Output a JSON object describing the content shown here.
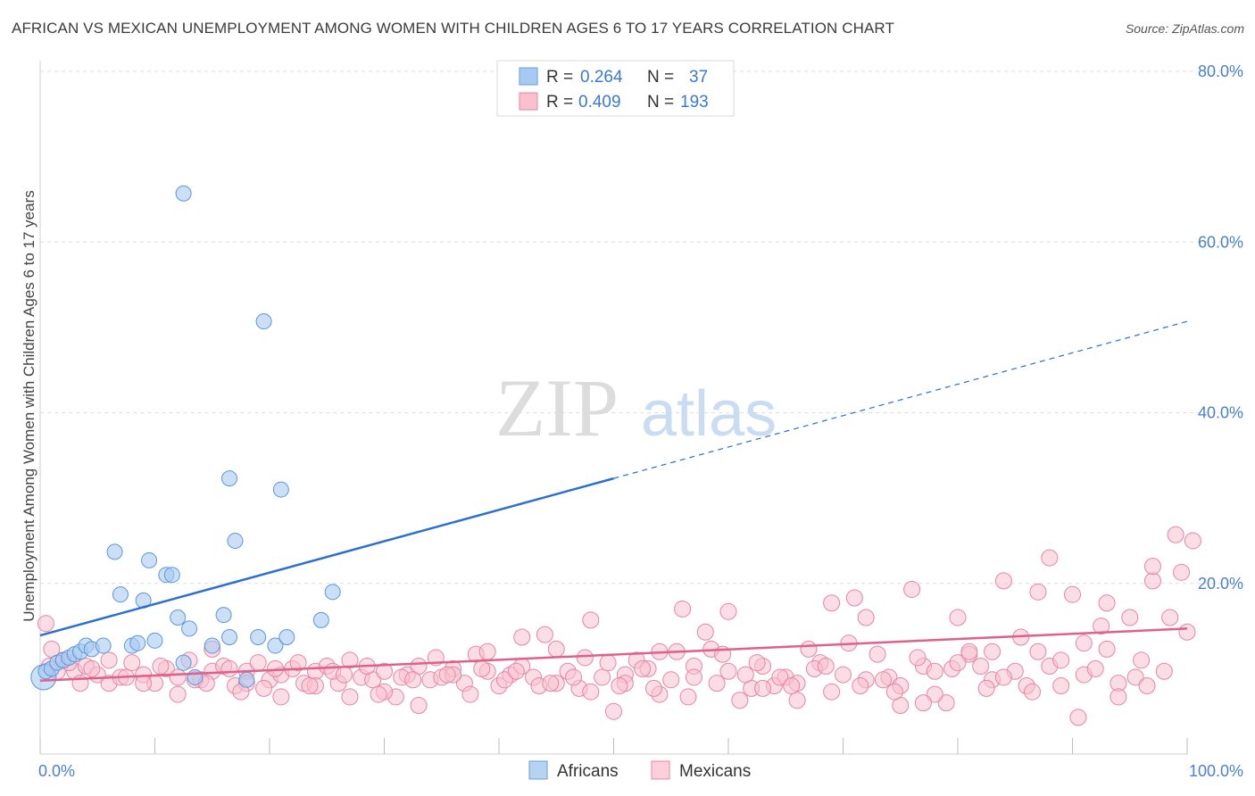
{
  "title": "AFRICAN VS MEXICAN UNEMPLOYMENT AMONG WOMEN WITH CHILDREN AGES 6 TO 17 YEARS CORRELATION CHART",
  "source": "Source: ZipAtlas.com",
  "watermark": {
    "zip": "ZIP",
    "atlas": "atlas"
  },
  "legend_top": [
    {
      "r_label": "R =",
      "r_value": "0.264",
      "n_label": "N =",
      "n_value": "37",
      "color": "#a9c9f0",
      "border": "#6a9fd8"
    },
    {
      "r_label": "R =",
      "r_value": "0.409",
      "n_label": "N =",
      "n_value": "193",
      "color": "#f7c1d0",
      "border": "#e884a5"
    }
  ],
  "legend_bottom": [
    {
      "label": "Africans",
      "color": "#b7d3f2",
      "border": "#6a9fd8"
    },
    {
      "label": "Mexicans",
      "color": "#fbd0dc",
      "border": "#e884a5"
    }
  ],
  "chart_data": {
    "type": "scatter",
    "title": "AFRICAN VS MEXICAN UNEMPLOYMENT AMONG WOMEN WITH CHILDREN AGES 6 TO 17 YEARS CORRELATION CHART",
    "xlabel": "",
    "ylabel": "Unemployment Among Women with Children Ages 6 to 17 years",
    "xlim": [
      0,
      100
    ],
    "ylim": [
      0,
      80
    ],
    "x_tick_labels": [
      "0.0%",
      "100.0%"
    ],
    "y_ticks": [
      20,
      40,
      60,
      80
    ],
    "y_tick_labels": [
      "20.0%",
      "40.0%",
      "60.0%",
      "80.0%"
    ],
    "grid": true,
    "colors": {
      "africans_fill": "#a9c9f0",
      "africans_stroke": "#5c97da",
      "africans_line": "#2a6fd1",
      "mexicans_fill": "#f7c1d0",
      "mexicans_stroke": "#e884a5",
      "mexicans_line": "#e0608c",
      "axis_text": "#4a7fd0"
    },
    "series": [
      {
        "name": "Africans",
        "R": 0.264,
        "N": 37,
        "trend": {
          "x0": 0,
          "y0": 13.9,
          "x1": 50,
          "y1": 32.3,
          "dashed_to_x": 100,
          "dashed_to_y": 50.7
        },
        "points": [
          [
            0.5,
            9.7
          ],
          [
            1.0,
            10.0
          ],
          [
            1.5,
            10.7
          ],
          [
            2.0,
            11.0
          ],
          [
            2.5,
            11.3
          ],
          [
            3.0,
            11.7
          ],
          [
            3.5,
            12.0
          ],
          [
            4.0,
            12.7
          ],
          [
            4.5,
            12.3
          ],
          [
            5.5,
            12.7
          ],
          [
            6.5,
            23.7
          ],
          [
            7.0,
            18.7
          ],
          [
            8.0,
            12.7
          ],
          [
            8.5,
            13.0
          ],
          [
            9.0,
            18.0
          ],
          [
            9.5,
            22.7
          ],
          [
            10.0,
            13.3
          ],
          [
            11.0,
            21.0
          ],
          [
            11.5,
            21.0
          ],
          [
            12.0,
            16.0
          ],
          [
            12.5,
            10.7
          ],
          [
            13.5,
            9.0
          ],
          [
            13.0,
            14.7
          ],
          [
            15.0,
            12.7
          ],
          [
            16.0,
            16.3
          ],
          [
            16.5,
            13.7
          ],
          [
            17.0,
            25.0
          ],
          [
            16.5,
            32.3
          ],
          [
            18.0,
            8.7
          ],
          [
            19.0,
            13.7
          ],
          [
            20.5,
            12.7
          ],
          [
            21.5,
            13.7
          ],
          [
            12.5,
            65.7
          ],
          [
            19.5,
            50.7
          ],
          [
            21.0,
            31.0
          ],
          [
            24.5,
            15.7
          ],
          [
            25.5,
            19.0
          ]
        ]
      },
      {
        "name": "Mexicans",
        "R": 0.409,
        "N": 193,
        "trend": {
          "x0": 0,
          "y0": 8.6,
          "x1": 100,
          "y1": 14.7
        },
        "points": [
          [
            0.5,
            15.3
          ],
          [
            1.0,
            12.3
          ],
          [
            2.0,
            11.0
          ],
          [
            3.0,
            9.7
          ],
          [
            4.0,
            10.3
          ],
          [
            5.0,
            9.3
          ],
          [
            6.0,
            8.3
          ],
          [
            7.0,
            9.0
          ],
          [
            8.0,
            10.7
          ],
          [
            9.0,
            9.3
          ],
          [
            10.0,
            8.3
          ],
          [
            11.0,
            10.0
          ],
          [
            12.0,
            9.0
          ],
          [
            13.0,
            11.0
          ],
          [
            14.0,
            8.7
          ],
          [
            15.0,
            9.7
          ],
          [
            16.0,
            10.3
          ],
          [
            17.0,
            8.0
          ],
          [
            18.0,
            9.7
          ],
          [
            19.0,
            10.7
          ],
          [
            20.0,
            8.7
          ],
          [
            21.0,
            9.3
          ],
          [
            22.0,
            10.0
          ],
          [
            23.0,
            8.3
          ],
          [
            24.0,
            9.7
          ],
          [
            25.0,
            10.3
          ],
          [
            26.0,
            8.3
          ],
          [
            27.0,
            11.0
          ],
          [
            28.0,
            9.0
          ],
          [
            29.0,
            8.7
          ],
          [
            30.0,
            9.7
          ],
          [
            31.0,
            6.7
          ],
          [
            32.0,
            9.3
          ],
          [
            33.0,
            10.3
          ],
          [
            34.0,
            8.7
          ],
          [
            35.0,
            9.0
          ],
          [
            36.0,
            10.0
          ],
          [
            37.0,
            8.3
          ],
          [
            38.0,
            11.7
          ],
          [
            39.0,
            9.7
          ],
          [
            40.0,
            8.0
          ],
          [
            41.0,
            9.3
          ],
          [
            42.0,
            10.3
          ],
          [
            43.0,
            9.0
          ],
          [
            44.0,
            14.0
          ],
          [
            45.0,
            8.3
          ],
          [
            46.0,
            9.7
          ],
          [
            47.0,
            7.7
          ],
          [
            48.0,
            15.7
          ],
          [
            49.0,
            9.0
          ],
          [
            50.0,
            5.0
          ],
          [
            51.0,
            9.3
          ],
          [
            52.0,
            11.0
          ],
          [
            53.0,
            10.0
          ],
          [
            54.0,
            12.0
          ],
          [
            55.0,
            8.7
          ],
          [
            56.0,
            17.0
          ],
          [
            57.0,
            10.3
          ],
          [
            58.0,
            14.3
          ],
          [
            59.0,
            8.3
          ],
          [
            60.0,
            9.7
          ],
          [
            61.0,
            6.3
          ],
          [
            62.0,
            7.7
          ],
          [
            63.0,
            10.3
          ],
          [
            64.0,
            8.0
          ],
          [
            65.0,
            9.0
          ],
          [
            66.0,
            8.3
          ],
          [
            67.0,
            12.3
          ],
          [
            68.0,
            10.7
          ],
          [
            69.0,
            17.7
          ],
          [
            70.0,
            9.3
          ],
          [
            71.0,
            18.3
          ],
          [
            72.0,
            8.7
          ],
          [
            73.0,
            11.7
          ],
          [
            74.0,
            9.0
          ],
          [
            75.0,
            8.0
          ],
          [
            76.0,
            19.3
          ],
          [
            77.0,
            10.3
          ],
          [
            78.0,
            9.7
          ],
          [
            79.0,
            6.0
          ],
          [
            80.0,
            16.0
          ],
          [
            81.0,
            11.7
          ],
          [
            82.0,
            10.3
          ],
          [
            83.0,
            8.7
          ],
          [
            84.0,
            20.3
          ],
          [
            85.0,
            9.7
          ],
          [
            86.0,
            8.0
          ],
          [
            87.0,
            12.0
          ],
          [
            88.0,
            10.3
          ],
          [
            89.0,
            11.0
          ],
          [
            90.0,
            18.7
          ],
          [
            91.0,
            9.3
          ],
          [
            92.0,
            10.0
          ],
          [
            93.0,
            12.3
          ],
          [
            94.0,
            8.3
          ],
          [
            95.0,
            16.0
          ],
          [
            96.0,
            11.0
          ],
          [
            97.0,
            20.3
          ],
          [
            98.0,
            9.7
          ],
          [
            99.0,
            25.7
          ],
          [
            100.0,
            14.3
          ],
          [
            88.0,
            23.0
          ],
          [
            90.5,
            4.3
          ],
          [
            92.5,
            15.0
          ],
          [
            94.0,
            6.7
          ],
          [
            95.5,
            9.0
          ],
          [
            97.0,
            22.0
          ],
          [
            98.5,
            16.0
          ],
          [
            99.5,
            21.3
          ],
          [
            93.0,
            17.7
          ],
          [
            91.0,
            13.0
          ],
          [
            87.0,
            19.0
          ],
          [
            85.5,
            13.7
          ],
          [
            84.0,
            9.0
          ],
          [
            82.5,
            7.7
          ],
          [
            81.0,
            12.0
          ],
          [
            79.5,
            10.0
          ],
          [
            78.0,
            7.0
          ],
          [
            76.5,
            11.3
          ],
          [
            75.0,
            5.7
          ],
          [
            73.5,
            8.7
          ],
          [
            72.0,
            16.0
          ],
          [
            70.5,
            13.0
          ],
          [
            69.0,
            7.3
          ],
          [
            67.5,
            10.0
          ],
          [
            66.0,
            6.3
          ],
          [
            64.5,
            9.0
          ],
          [
            63.0,
            7.7
          ],
          [
            61.5,
            9.3
          ],
          [
            60.0,
            16.7
          ],
          [
            58.5,
            12.3
          ],
          [
            57.0,
            9.0
          ],
          [
            55.5,
            12.0
          ],
          [
            54.0,
            7.0
          ],
          [
            52.5,
            10.0
          ],
          [
            51.0,
            8.3
          ],
          [
            49.5,
            10.7
          ],
          [
            48.0,
            7.3
          ],
          [
            46.5,
            9.0
          ],
          [
            45.0,
            12.3
          ],
          [
            43.5,
            8.0
          ],
          [
            42.0,
            13.7
          ],
          [
            40.5,
            8.7
          ],
          [
            39.0,
            12.0
          ],
          [
            37.5,
            7.0
          ],
          [
            36.0,
            9.3
          ],
          [
            34.5,
            11.3
          ],
          [
            33.0,
            5.7
          ],
          [
            31.5,
            9.0
          ],
          [
            30.0,
            7.3
          ],
          [
            28.5,
            10.3
          ],
          [
            27.0,
            6.7
          ],
          [
            25.5,
            9.7
          ],
          [
            24.0,
            8.0
          ],
          [
            22.5,
            10.7
          ],
          [
            21.0,
            6.7
          ],
          [
            19.5,
            7.7
          ],
          [
            18.0,
            8.3
          ],
          [
            16.5,
            10.0
          ],
          [
            15.0,
            12.3
          ],
          [
            13.5,
            8.7
          ],
          [
            12.0,
            7.0
          ],
          [
            10.5,
            10.3
          ],
          [
            9.0,
            8.3
          ],
          [
            7.5,
            9.0
          ],
          [
            6.0,
            11.0
          ],
          [
            4.5,
            10.0
          ],
          [
            3.5,
            8.3
          ],
          [
            2.5,
            10.7
          ],
          [
            1.5,
            9.7
          ],
          [
            0.8,
            10.3
          ],
          [
            100.5,
            25.0
          ],
          [
            96.5,
            8.0
          ],
          [
            89.0,
            8.0
          ],
          [
            86.5,
            7.3
          ],
          [
            83.0,
            12.0
          ],
          [
            80.0,
            10.7
          ],
          [
            77.0,
            6.0
          ],
          [
            74.5,
            7.3
          ],
          [
            71.5,
            8.0
          ],
          [
            68.5,
            10.3
          ],
          [
            65.5,
            8.0
          ],
          [
            62.5,
            10.7
          ],
          [
            59.5,
            11.7
          ],
          [
            56.5,
            6.7
          ],
          [
            53.5,
            7.7
          ],
          [
            50.5,
            8.0
          ],
          [
            47.5,
            11.3
          ],
          [
            44.5,
            8.3
          ],
          [
            41.5,
            9.7
          ],
          [
            38.5,
            10.0
          ],
          [
            35.5,
            9.3
          ],
          [
            32.5,
            8.7
          ],
          [
            29.5,
            7.0
          ],
          [
            26.5,
            9.3
          ],
          [
            23.5,
            8.0
          ],
          [
            20.5,
            10.0
          ],
          [
            17.5,
            7.3
          ],
          [
            14.5,
            8.3
          ]
        ]
      }
    ]
  }
}
